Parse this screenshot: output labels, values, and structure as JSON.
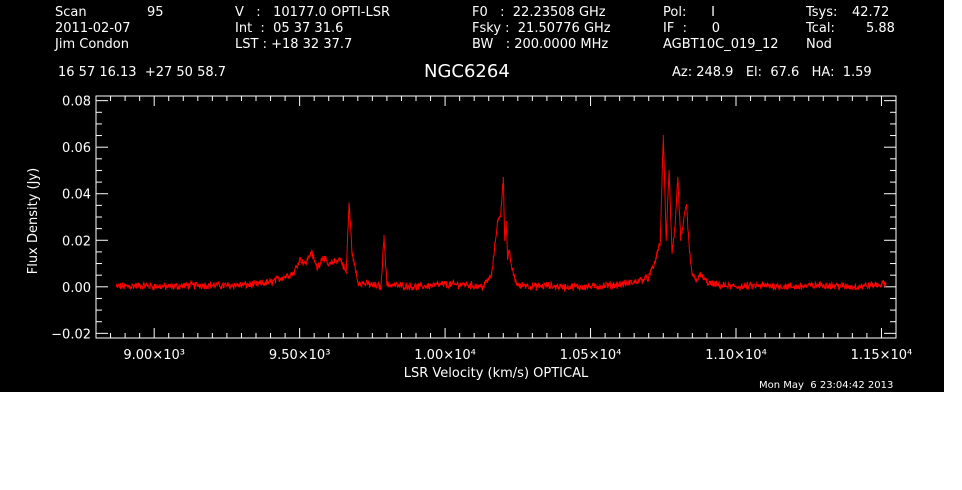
{
  "header": {
    "col1": {
      "scan_label": "Scan",
      "scan_value": "95",
      "date": "2011-02-07",
      "observer": "Jim Condon",
      "coords": "16 57 16.13  +27 50 58.7"
    },
    "col2": {
      "v_line": "V   :   10177.0 OPTI-LSR",
      "int_line": "Int  :  05 37 31.6",
      "lst_line": "LST : +18 32 37.7"
    },
    "col3": {
      "f0_line": "F0   :  22.23508 GHz",
      "fsky_line": "Fsky :  21.50776 GHz",
      "bw_line": "BW   : 200.0000 MHz"
    },
    "col4": {
      "pol_line": "Pol:      I",
      "if_line": "IF  :      0",
      "project": "AGBT10C_019_12"
    },
    "col5": {
      "tsys_label": "Tsys:",
      "tsys_value": "42.72",
      "tcal_label": "Tcal:",
      "tcal_value": "5.88",
      "mode": "Nod"
    },
    "source": "NGC6264",
    "pointing": "Az: 248.9   El:  67.6   HA:  1.59",
    "timestamp": "Mon May  6 23:04:42 2013"
  },
  "colors": {
    "background": "#000000",
    "axes": "#ffffff",
    "trace": "#ff0000"
  },
  "chart_data": {
    "type": "line",
    "xlabel": "LSR Velocity (km/s) OPTICAL",
    "ylabel": "Flux Density (Jy)",
    "xlim": [
      8800,
      11550
    ],
    "ylim": [
      -0.022,
      0.082
    ],
    "x_ticks": [
      9000,
      9500,
      10000,
      10500,
      11000,
      11500
    ],
    "x_tick_labels": [
      "9.00×10³",
      "9.50×10³",
      "1.00×10⁴",
      "1.05×10⁴",
      "1.10×10⁴",
      "1.15×10⁴"
    ],
    "y_ticks": [
      -0.02,
      0.0,
      0.02,
      0.04,
      0.06,
      0.08
    ],
    "y_tick_labels": [
      "−0.02",
      "0.00",
      "0.02",
      "0.04",
      "0.06",
      "0.08"
    ],
    "grid": false,
    "series": [
      {
        "x": [
          8870,
          8950,
          9050,
          9150,
          9250,
          9350,
          9400,
          9440,
          9480,
          9500,
          9520,
          9540,
          9560,
          9580,
          9600,
          9620,
          9640,
          9660,
          9670,
          9680,
          9700,
          9740,
          9780,
          9790,
          9800,
          9850,
          9900,
          9950,
          9990,
          10070,
          10130,
          10160,
          10180,
          10190,
          10200,
          10205,
          10210,
          10215,
          10220,
          10230,
          10240,
          10250,
          10260,
          10270,
          10300,
          10350,
          10400,
          10500,
          10600,
          10650,
          10700,
          10720,
          10730,
          10740,
          10750,
          10760,
          10770,
          10780,
          10790,
          10800,
          10810,
          10820,
          10830,
          10840,
          10850,
          10860,
          10880,
          10900,
          10920,
          10950,
          11000,
          11100,
          11200,
          11300,
          11400,
          11500,
          11515
        ],
        "y": [
          0.0,
          0.0005,
          0.0,
          0.0008,
          0.0005,
          0.001,
          0.002,
          0.004,
          0.006,
          0.012,
          0.01,
          0.015,
          0.008,
          0.013,
          0.009,
          0.011,
          0.012,
          0.006,
          0.036,
          0.015,
          0.002,
          0.001,
          0.0,
          0.022,
          0.001,
          0.0005,
          0.0,
          0.0005,
          0.001,
          0.001,
          0.0,
          0.005,
          0.028,
          0.03,
          0.047,
          0.02,
          0.028,
          0.012,
          0.015,
          0.008,
          0.003,
          0.001,
          0.0,
          0.001,
          0.0,
          0.0005,
          0.0,
          0.0,
          0.001,
          0.002,
          0.004,
          0.01,
          0.015,
          0.02,
          0.065,
          0.02,
          0.05,
          0.015,
          0.025,
          0.047,
          0.02,
          0.028,
          0.035,
          0.015,
          0.005,
          0.003,
          0.005,
          0.002,
          0.001,
          0.0005,
          0.0,
          0.0005,
          0.0,
          0.0008,
          0.0,
          0.001,
          0.0015
        ]
      }
    ]
  }
}
